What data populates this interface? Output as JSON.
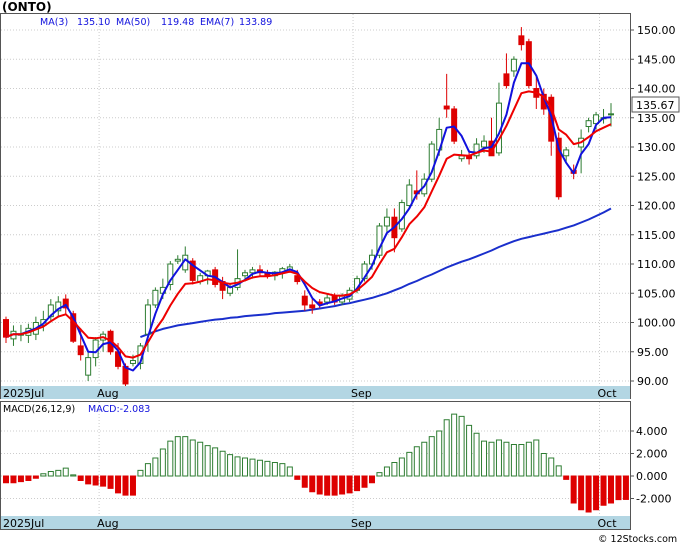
{
  "header": {
    "ticker": "(ONTO)",
    "ma3_label": "MA(3)",
    "ma3_value": "135.10",
    "ma50_label": "MA(50)",
    "ma50_value": "119.48",
    "ema7_label": "EMA(7)",
    "ema7_value": "133.89"
  },
  "price_badge": "135.67",
  "macd_header": {
    "label": "MACD(26,12,9)",
    "value_label": "MACD:-2.083"
  },
  "axis_months": [
    "2025Jul",
    "Aug",
    "Sep",
    "Oct"
  ],
  "watermark": "© 12Stocks.com",
  "colors": {
    "up_candle": "#2e7d32",
    "down_candle": "#dd0000",
    "ma3": "#1111dd",
    "ma50": "#1a2fcc",
    "ema7": "#ee0000",
    "macd_pos": "#2e7d32",
    "macd_neg": "#dd0000",
    "axis_band": "#b3d6e3"
  },
  "chart_data": [
    {
      "type": "candlestick",
      "title": "(ONTO)",
      "ylim": [
        88,
        153
      ],
      "y_ticks": [
        90,
        95,
        100,
        105,
        110,
        115,
        120,
        125,
        130,
        135,
        140,
        145,
        150
      ],
      "x_month_labels": [
        {
          "label": "2025Jul",
          "index": 0
        },
        {
          "label": "Aug",
          "index": 13
        },
        {
          "label": "Sep",
          "index": 47
        },
        {
          "label": "Oct",
          "index": 80
        }
      ],
      "candles": [
        {
          "o": 100.5,
          "h": 101.0,
          "l": 96.5,
          "c": 97.5
        },
        {
          "o": 97.2,
          "h": 99.5,
          "l": 96.0,
          "c": 98.5
        },
        {
          "o": 98.0,
          "h": 99.6,
          "l": 96.8,
          "c": 98.0
        },
        {
          "o": 97.8,
          "h": 99.8,
          "l": 96.5,
          "c": 99.0
        },
        {
          "o": 98.0,
          "h": 101.0,
          "l": 97.0,
          "c": 100.0
        },
        {
          "o": 99.5,
          "h": 102.0,
          "l": 98.5,
          "c": 100.5
        },
        {
          "o": 101.0,
          "h": 104.0,
          "l": 100.0,
          "c": 103.0
        },
        {
          "o": 102.0,
          "h": 104.5,
          "l": 101.0,
          "c": 103.5
        },
        {
          "o": 104.0,
          "h": 104.8,
          "l": 101.5,
          "c": 102.5
        },
        {
          "o": 101.5,
          "h": 102.0,
          "l": 96.5,
          "c": 96.8
        },
        {
          "o": 96.0,
          "h": 99.0,
          "l": 93.5,
          "c": 94.5
        },
        {
          "o": 91.0,
          "h": 95.0,
          "l": 90.0,
          "c": 94.0
        },
        {
          "o": 94.0,
          "h": 97.5,
          "l": 92.5,
          "c": 97.0
        },
        {
          "o": 97.0,
          "h": 98.5,
          "l": 95.0,
          "c": 98.0
        },
        {
          "o": 98.5,
          "h": 98.8,
          "l": 94.5,
          "c": 95.0
        },
        {
          "o": 95.0,
          "h": 96.5,
          "l": 92.0,
          "c": 92.5
        },
        {
          "o": 92.5,
          "h": 93.0,
          "l": 88.5,
          "c": 89.5
        },
        {
          "o": 93.0,
          "h": 94.5,
          "l": 92.5,
          "c": 93.5
        },
        {
          "o": 93.0,
          "h": 96.5,
          "l": 92.0,
          "c": 96.0
        },
        {
          "o": 98.0,
          "h": 104.0,
          "l": 95.0,
          "c": 103.0
        },
        {
          "o": 103.0,
          "h": 106.0,
          "l": 102.5,
          "c": 105.5
        },
        {
          "o": 105.0,
          "h": 107.5,
          "l": 104.0,
          "c": 106.0
        },
        {
          "o": 106.5,
          "h": 110.5,
          "l": 105.5,
          "c": 110.0
        },
        {
          "o": 110.5,
          "h": 111.5,
          "l": 110.0,
          "c": 110.8
        },
        {
          "o": 109.0,
          "h": 113.0,
          "l": 108.5,
          "c": 111.5
        },
        {
          "o": 110.5,
          "h": 111.0,
          "l": 106.5,
          "c": 107.2
        },
        {
          "o": 107.0,
          "h": 108.5,
          "l": 106.5,
          "c": 108.0
        },
        {
          "o": 108.0,
          "h": 109.0,
          "l": 106.5,
          "c": 108.8
        },
        {
          "o": 109.0,
          "h": 109.5,
          "l": 106.0,
          "c": 106.5
        },
        {
          "o": 107.0,
          "h": 107.8,
          "l": 104.0,
          "c": 105.5
        },
        {
          "o": 105.0,
          "h": 106.5,
          "l": 104.5,
          "c": 106.0
        },
        {
          "o": 106.0,
          "h": 112.5,
          "l": 105.5,
          "c": 107.5
        },
        {
          "o": 108.0,
          "h": 109.0,
          "l": 107.0,
          "c": 108.5
        },
        {
          "o": 108.5,
          "h": 109.5,
          "l": 107.5,
          "c": 109.0
        },
        {
          "o": 109.0,
          "h": 109.8,
          "l": 108.0,
          "c": 108.5
        },
        {
          "o": 108.5,
          "h": 109.0,
          "l": 107.5,
          "c": 108.0
        },
        {
          "o": 108.0,
          "h": 108.8,
          "l": 107.2,
          "c": 108.6
        },
        {
          "o": 108.5,
          "h": 109.5,
          "l": 107.5,
          "c": 109.2
        },
        {
          "o": 109.0,
          "h": 110.0,
          "l": 108.5,
          "c": 109.5
        },
        {
          "o": 108.0,
          "h": 109.0,
          "l": 106.5,
          "c": 107.0
        },
        {
          "o": 104.5,
          "h": 105.5,
          "l": 102.0,
          "c": 103.0
        },
        {
          "o": 103.0,
          "h": 104.0,
          "l": 101.5,
          "c": 102.5
        },
        {
          "o": 103.5,
          "h": 104.0,
          "l": 102.5,
          "c": 103.2
        },
        {
          "o": 103.5,
          "h": 105.0,
          "l": 103.0,
          "c": 104.2
        },
        {
          "o": 104.5,
          "h": 105.0,
          "l": 103.0,
          "c": 103.5
        },
        {
          "o": 103.5,
          "h": 105.0,
          "l": 103.0,
          "c": 104.5
        },
        {
          "o": 104.0,
          "h": 106.0,
          "l": 103.5,
          "c": 105.5
        },
        {
          "o": 105.5,
          "h": 108.0,
          "l": 105.0,
          "c": 107.5
        },
        {
          "o": 107.5,
          "h": 110.5,
          "l": 107.0,
          "c": 110.0
        },
        {
          "o": 110.0,
          "h": 112.5,
          "l": 109.0,
          "c": 111.5
        },
        {
          "o": 111.5,
          "h": 117.0,
          "l": 111.0,
          "c": 116.5
        },
        {
          "o": 116.5,
          "h": 119.5,
          "l": 115.0,
          "c": 118.0
        },
        {
          "o": 118.0,
          "h": 119.5,
          "l": 112.0,
          "c": 114.5
        },
        {
          "o": 116.0,
          "h": 121.0,
          "l": 115.5,
          "c": 120.5
        },
        {
          "o": 120.0,
          "h": 124.5,
          "l": 119.5,
          "c": 123.5
        },
        {
          "o": 122.5,
          "h": 126.0,
          "l": 121.0,
          "c": 122.0
        },
        {
          "o": 122.0,
          "h": 125.5,
          "l": 121.5,
          "c": 124.5
        },
        {
          "o": 124.5,
          "h": 131.0,
          "l": 124.0,
          "c": 130.5
        },
        {
          "o": 129.5,
          "h": 135.0,
          "l": 128.5,
          "c": 133.0
        },
        {
          "o": 137.0,
          "h": 142.5,
          "l": 135.0,
          "c": 136.5
        },
        {
          "o": 136.5,
          "h": 137.0,
          "l": 130.5,
          "c": 131.0
        },
        {
          "o": 128.0,
          "h": 129.5,
          "l": 127.5,
          "c": 128.5
        },
        {
          "o": 128.5,
          "h": 129.5,
          "l": 127.0,
          "c": 128.0
        },
        {
          "o": 128.5,
          "h": 131.5,
          "l": 128.0,
          "c": 130.5
        },
        {
          "o": 130.0,
          "h": 132.0,
          "l": 129.0,
          "c": 131.0
        },
        {
          "o": 131.0,
          "h": 135.0,
          "l": 129.0,
          "c": 128.5
        },
        {
          "o": 129.0,
          "h": 141.0,
          "l": 128.5,
          "c": 137.5
        },
        {
          "o": 142.5,
          "h": 146.0,
          "l": 140.0,
          "c": 140.5
        },
        {
          "o": 143.0,
          "h": 145.5,
          "l": 142.0,
          "c": 145.0
        },
        {
          "o": 149.0,
          "h": 150.5,
          "l": 146.5,
          "c": 147.5
        },
        {
          "o": 148.0,
          "h": 148.5,
          "l": 140.0,
          "c": 140.5
        },
        {
          "o": 140.0,
          "h": 142.0,
          "l": 136.5,
          "c": 138.5
        },
        {
          "o": 139.0,
          "h": 140.0,
          "l": 135.5,
          "c": 136.5
        },
        {
          "o": 138.5,
          "h": 139.0,
          "l": 128.5,
          "c": 131.0
        },
        {
          "o": 131.5,
          "h": 132.5,
          "l": 121.0,
          "c": 121.5
        },
        {
          "o": 128.5,
          "h": 130.0,
          "l": 127.5,
          "c": 129.5
        },
        {
          "o": 126.0,
          "h": 127.0,
          "l": 124.5,
          "c": 125.5
        },
        {
          "o": 130.0,
          "h": 133.0,
          "l": 125.5,
          "c": 131.5
        },
        {
          "o": 133.5,
          "h": 135.0,
          "l": 132.5,
          "c": 134.5
        },
        {
          "o": 134.0,
          "h": 136.0,
          "l": 133.0,
          "c": 135.5
        },
        {
          "o": 135.0,
          "h": 136.5,
          "l": 134.0,
          "c": 135.0
        },
        {
          "o": 135.5,
          "h": 137.5,
          "l": 133.5,
          "c": 135.67
        }
      ],
      "series": [
        {
          "name": "MA(3)",
          "values": [
            97.5,
            98.0,
            98.0,
            98.5,
            99.0,
            99.8,
            101.2,
            102.3,
            103.0,
            100.9,
            97.9,
            95.0,
            94.9,
            96.3,
            96.6,
            95.2,
            92.3,
            91.8,
            93.2,
            97.5,
            101.5,
            104.8,
            107.2,
            109.0,
            110.8,
            109.8,
            108.9,
            108.0,
            107.8,
            106.9,
            106.0,
            106.5,
            107.3,
            108.3,
            108.7,
            108.5,
            108.4,
            108.6,
            109.1,
            108.6,
            106.5,
            104.2,
            102.9,
            103.3,
            103.6,
            104.1,
            104.5,
            105.8,
            107.7,
            109.7,
            112.7,
            115.3,
            116.3,
            117.7,
            119.5,
            122.0,
            123.3,
            125.7,
            129.3,
            133.3,
            133.5,
            131.9,
            129.2,
            129.0,
            129.8,
            130.0,
            132.3,
            135.5,
            141.0,
            144.3,
            144.3,
            142.2,
            138.5,
            135.3,
            129.7,
            127.3,
            125.5,
            128.8,
            130.5,
            133.8,
            135.0,
            135.1
          ]
        },
        {
          "name": "EMA(7)",
          "values": [
            97.5,
            98.0,
            98.0,
            98.3,
            98.8,
            99.3,
            100.2,
            101.0,
            101.4,
            100.2,
            98.8,
            97.4,
            97.3,
            97.5,
            96.9,
            95.8,
            94.2,
            94.0,
            94.5,
            96.6,
            98.8,
            100.6,
            102.9,
            104.9,
            106.6,
            106.7,
            107.0,
            107.4,
            107.2,
            106.8,
            106.6,
            106.8,
            107.2,
            107.7,
            107.9,
            107.9,
            108.1,
            108.4,
            108.7,
            108.3,
            107.0,
            105.9,
            105.2,
            104.9,
            104.6,
            104.6,
            104.8,
            105.5,
            106.6,
            107.8,
            110.0,
            112.0,
            112.6,
            114.6,
            116.8,
            118.1,
            119.7,
            122.4,
            125.1,
            128.0,
            128.7,
            128.6,
            128.5,
            129.0,
            129.4,
            129.2,
            131.3,
            133.6,
            136.4,
            139.2,
            139.5,
            139.3,
            138.6,
            136.7,
            133.0,
            132.1,
            130.5,
            130.8,
            131.7,
            132.7,
            133.3,
            133.89
          ]
        },
        {
          "name": "MA(50)",
          "values": [
            null,
            null,
            null,
            null,
            null,
            null,
            null,
            null,
            null,
            null,
            null,
            null,
            null,
            null,
            null,
            null,
            null,
            null,
            97.5,
            98.0,
            98.5,
            98.9,
            99.2,
            99.5,
            99.7,
            99.9,
            100.1,
            100.3,
            100.5,
            100.6,
            100.8,
            100.9,
            101.1,
            101.2,
            101.3,
            101.4,
            101.6,
            101.7,
            101.8,
            101.9,
            102.0,
            102.2,
            102.4,
            102.6,
            102.8,
            103.1,
            103.3,
            103.6,
            103.9,
            104.2,
            104.6,
            105.0,
            105.5,
            106.0,
            106.6,
            107.1,
            107.7,
            108.2,
            108.8,
            109.4,
            109.9,
            110.4,
            110.8,
            111.3,
            111.8,
            112.3,
            112.9,
            113.4,
            113.9,
            114.3,
            114.6,
            114.9,
            115.2,
            115.5,
            115.8,
            116.2,
            116.6,
            117.1,
            117.6,
            118.2,
            118.8,
            119.48
          ]
        }
      ]
    },
    {
      "type": "bar",
      "title": "MACD(26,12,9)",
      "ylim": [
        -4,
        6
      ],
      "y_ticks": [
        -2.0,
        0.0,
        2.0,
        4.0
      ],
      "y_tick_labels": [
        "-2.000",
        "0.000",
        "2.000",
        "4.000"
      ],
      "values": [
        -0.6,
        -0.6,
        -0.5,
        -0.4,
        -0.2,
        0.2,
        0.4,
        0.5,
        0.7,
        0.1,
        -0.4,
        -0.7,
        -0.8,
        -0.9,
        -1.1,
        -1.5,
        -1.7,
        -1.7,
        0.5,
        1.1,
        1.6,
        2.4,
        3.1,
        3.5,
        3.5,
        3.2,
        3.0,
        2.7,
        2.5,
        2.2,
        1.9,
        1.7,
        1.6,
        1.5,
        1.4,
        1.3,
        1.2,
        1.1,
        0.8,
        -0.3,
        -1.0,
        -1.4,
        -1.6,
        -1.7,
        -1.7,
        -1.6,
        -1.5,
        -1.3,
        -1.0,
        -0.6,
        0.3,
        0.8,
        1.2,
        1.6,
        2.1,
        2.6,
        3.0,
        3.5,
        4.0,
        5.0,
        5.5,
        5.3,
        4.5,
        3.8,
        3.1,
        3.0,
        3.2,
        3.0,
        2.8,
        2.8,
        3.0,
        3.2,
        2.0,
        1.6,
        0.9,
        -0.3,
        -2.4,
        -3.0,
        -3.2,
        -3.0,
        -2.6,
        -2.4,
        -2.1,
        -2.083
      ]
    }
  ]
}
